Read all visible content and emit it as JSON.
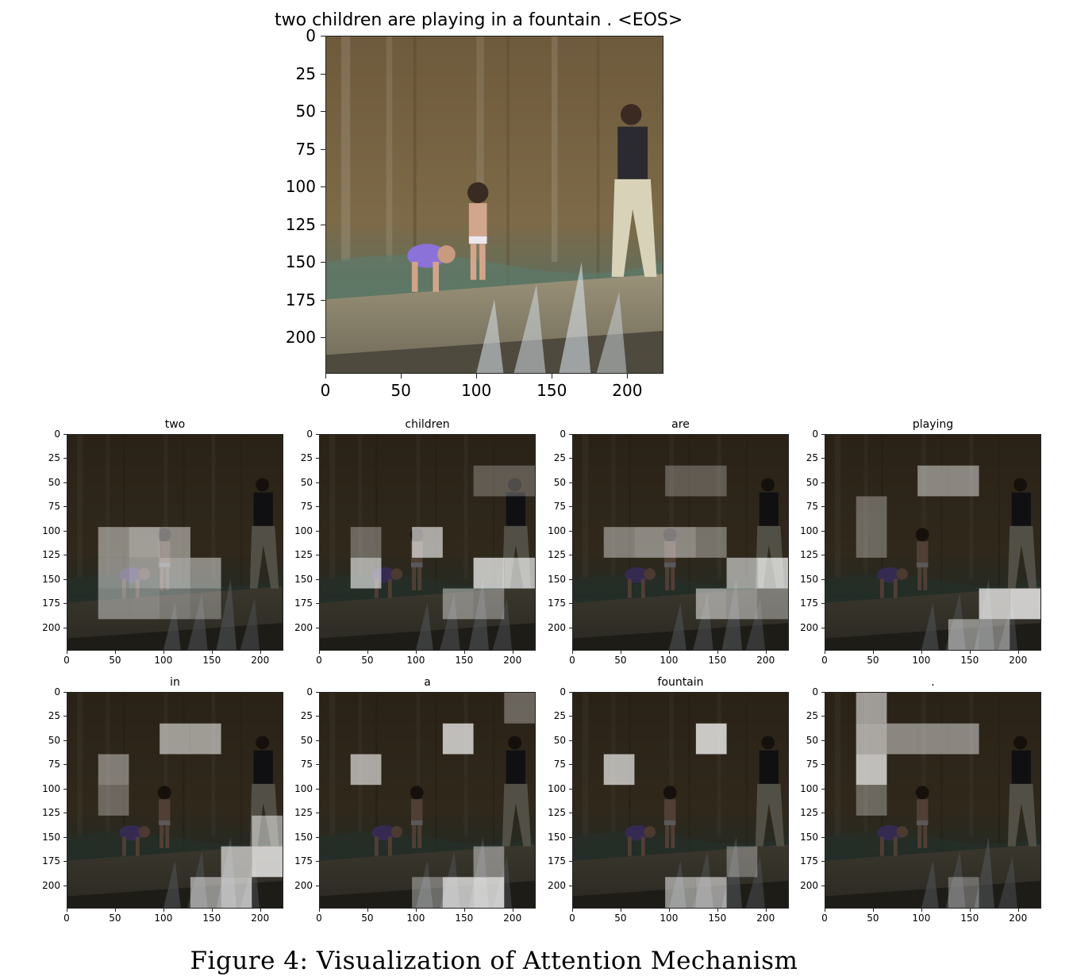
{
  "main": {
    "title": "two children are playing in a fountain . <EOS>",
    "image_description": "children-in-fountain-photo",
    "axis_ticks": [
      "0",
      "25",
      "50",
      "75",
      "100",
      "125",
      "150",
      "175",
      "200"
    ],
    "x_ticks": [
      "0",
      "50",
      "100",
      "150",
      "200"
    ]
  },
  "panels": [
    {
      "word": "two",
      "highlights": [
        [
          1,
          3,
          0.45
        ],
        [
          2,
          3,
          0.55
        ],
        [
          3,
          3,
          0.45
        ],
        [
          1,
          4,
          0.45
        ],
        [
          2,
          4,
          0.5
        ],
        [
          3,
          4,
          0.55
        ],
        [
          4,
          4,
          0.45
        ],
        [
          1,
          5,
          0.4
        ],
        [
          2,
          5,
          0.4
        ],
        [
          3,
          5,
          0.35
        ],
        [
          4,
          5,
          0.3
        ]
      ]
    },
    {
      "word": "children",
      "highlights": [
        [
          5,
          1,
          0.25
        ],
        [
          6,
          1,
          0.25
        ],
        [
          1,
          3,
          0.3
        ],
        [
          3,
          3,
          0.6
        ],
        [
          1,
          4,
          0.6
        ],
        [
          5,
          4,
          0.7
        ],
        [
          6,
          4,
          0.65
        ],
        [
          4,
          5,
          0.4
        ],
        [
          5,
          5,
          0.35
        ]
      ]
    },
    {
      "word": "are",
      "highlights": [
        [
          3,
          1,
          0.25
        ],
        [
          4,
          1,
          0.25
        ],
        [
          1,
          3,
          0.4
        ],
        [
          2,
          3,
          0.45
        ],
        [
          3,
          3,
          0.45
        ],
        [
          4,
          3,
          0.35
        ],
        [
          5,
          4,
          0.55
        ],
        [
          6,
          4,
          0.7
        ],
        [
          4,
          5,
          0.5
        ],
        [
          5,
          5,
          0.45
        ],
        [
          6,
          5,
          0.35
        ]
      ]
    },
    {
      "word": "playing",
      "highlights": [
        [
          3,
          1,
          0.45
        ],
        [
          4,
          1,
          0.45
        ],
        [
          1,
          2,
          0.3
        ],
        [
          1,
          3,
          0.3
        ],
        [
          5,
          5,
          0.7
        ],
        [
          6,
          5,
          0.75
        ],
        [
          4,
          6,
          0.45
        ],
        [
          5,
          6,
          0.4
        ]
      ]
    },
    {
      "word": "in",
      "highlights": [
        [
          3,
          1,
          0.55
        ],
        [
          4,
          1,
          0.55
        ],
        [
          1,
          2,
          0.4
        ],
        [
          1,
          3,
          0.3
        ],
        [
          6,
          4,
          0.5
        ],
        [
          5,
          5,
          0.6
        ],
        [
          6,
          5,
          0.75
        ],
        [
          5,
          6,
          0.65
        ],
        [
          4,
          6,
          0.5
        ]
      ]
    },
    {
      "word": "a",
      "highlights": [
        [
          6,
          0,
          0.3
        ],
        [
          4,
          1,
          0.7
        ],
        [
          1,
          2,
          0.6
        ],
        [
          4,
          6,
          0.7
        ],
        [
          5,
          6,
          0.75
        ],
        [
          5,
          5,
          0.4
        ],
        [
          3,
          6,
          0.35
        ]
      ]
    },
    {
      "word": "fountain",
      "highlights": [
        [
          4,
          1,
          0.75
        ],
        [
          1,
          2,
          0.65
        ],
        [
          3,
          6,
          0.5
        ],
        [
          4,
          6,
          0.55
        ],
        [
          5,
          5,
          0.3
        ]
      ]
    },
    {
      "word": ".",
      "highlights": [
        [
          1,
          0,
          0.55
        ],
        [
          1,
          1,
          0.6
        ],
        [
          2,
          1,
          0.45
        ],
        [
          3,
          1,
          0.45
        ],
        [
          4,
          1,
          0.45
        ],
        [
          1,
          2,
          0.7
        ],
        [
          1,
          3,
          0.3
        ],
        [
          4,
          6,
          0.3
        ]
      ]
    }
  ],
  "caption": "Figure 4: Visualization of Attention Mechanism"
}
